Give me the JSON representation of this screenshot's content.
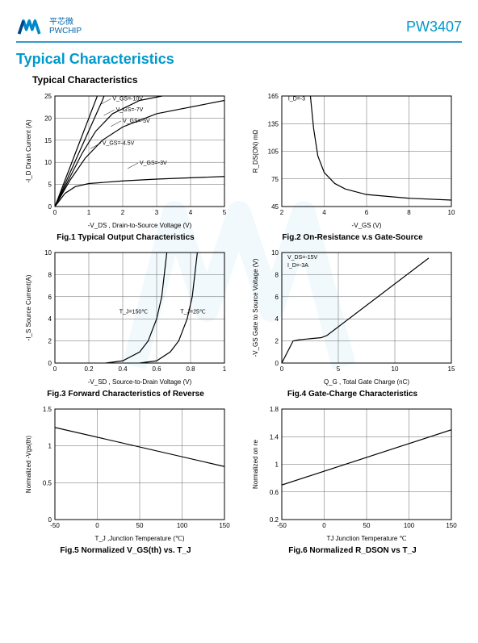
{
  "header": {
    "brand_cn": "平芯微",
    "brand_en": "PWCHIP",
    "part_number": "PW3407"
  },
  "section_title": "Typical Characteristics",
  "subsection_title": "Typical Characteristics",
  "charts": {
    "fig1": {
      "caption": "Fig.1 Typical Output Characteristics",
      "xlabel": "-V_DS , Drain-to-Source Voltage (V)",
      "ylabel": "-I_D Drain Current (A)",
      "xlim": [
        0,
        5
      ],
      "ylim": [
        0,
        25
      ],
      "xticks": [
        0,
        1,
        2,
        3,
        4,
        5
      ],
      "yticks": [
        0,
        5,
        10,
        15,
        20,
        25
      ],
      "annotations": [
        "V_GS=-10V",
        "V_GS=-7V",
        "V_GS=-5V",
        "V_GS=-4.5V",
        "V_GS=-3V"
      ],
      "series": [
        {
          "points": [
            [
              0,
              0
            ],
            [
              0.3,
              6
            ],
            [
              0.6,
              12
            ],
            [
              0.9,
              18
            ],
            [
              1.2,
              24
            ],
            [
              1.3,
              26
            ]
          ]
        },
        {
          "points": [
            [
              0,
              0
            ],
            [
              0.35,
              6
            ],
            [
              0.7,
              12
            ],
            [
              1.05,
              18
            ],
            [
              1.4,
              24
            ],
            [
              1.5,
              26
            ]
          ]
        },
        {
          "points": [
            [
              0,
              0
            ],
            [
              0.4,
              6
            ],
            [
              0.8,
              12
            ],
            [
              1.2,
              17
            ],
            [
              1.7,
              21
            ],
            [
              2.5,
              24
            ],
            [
              3.5,
              25.5
            ]
          ]
        },
        {
          "points": [
            [
              0,
              0
            ],
            [
              0.45,
              6
            ],
            [
              0.9,
              11
            ],
            [
              1.4,
              15
            ],
            [
              2.0,
              18
            ],
            [
              3.0,
              21
            ],
            [
              5.0,
              24
            ]
          ]
        },
        {
          "points": [
            [
              0,
              0
            ],
            [
              0.3,
              3
            ],
            [
              0.6,
              4.5
            ],
            [
              1.0,
              5.2
            ],
            [
              2.0,
              5.8
            ],
            [
              3.0,
              6.2
            ],
            [
              5.0,
              6.8
            ]
          ]
        }
      ]
    },
    "fig2": {
      "caption": "Fig.2 On-Resistance v.s Gate-Source",
      "xlabel": "-V_GS (V)",
      "ylabel": "R_DS(ON) mΩ",
      "xlim": [
        2,
        10
      ],
      "ylim": [
        45,
        165
      ],
      "xticks": [
        2,
        4,
        6,
        8,
        10
      ],
      "yticks": [
        45,
        75,
        105,
        135,
        165
      ],
      "annotation": "I_D=-3",
      "series": [
        {
          "points": [
            [
              3.35,
              165
            ],
            [
              3.5,
              130
            ],
            [
              3.7,
              100
            ],
            [
              4.0,
              82
            ],
            [
              4.5,
              70
            ],
            [
              5.0,
              64
            ],
            [
              6.0,
              58
            ],
            [
              8.0,
              54
            ],
            [
              10.0,
              52
            ]
          ]
        }
      ]
    },
    "fig3": {
      "caption": "Fig.3 Forward Characteristics of Reverse",
      "xlabel": "-V_SD , Source-to-Drain Voltage (V)",
      "ylabel": "-I_S Source Current(A)",
      "xlim": [
        0,
        1
      ],
      "ylim": [
        0,
        10
      ],
      "xticks": [
        0,
        0.2,
        0.4,
        0.6,
        0.8,
        1
      ],
      "yticks": [
        0,
        2,
        4,
        6,
        8,
        10
      ],
      "annotations": [
        "T_J=150℃",
        "T_J=25℃"
      ],
      "series": [
        {
          "points": [
            [
              0.3,
              0
            ],
            [
              0.4,
              0.2
            ],
            [
              0.5,
              1
            ],
            [
              0.55,
              2
            ],
            [
              0.6,
              4
            ],
            [
              0.63,
              6
            ],
            [
              0.66,
              10
            ]
          ]
        },
        {
          "points": [
            [
              0.5,
              0
            ],
            [
              0.6,
              0.2
            ],
            [
              0.68,
              1
            ],
            [
              0.73,
              2
            ],
            [
              0.78,
              4
            ],
            [
              0.81,
              6
            ],
            [
              0.84,
              10
            ]
          ]
        }
      ]
    },
    "fig4": {
      "caption": "Fig.4 Gate-Charge Characteristics",
      "xlabel": "Q_G , Total Gate Charge (nC)",
      "ylabel": "-V_GS Gate to Source Voltage (V)",
      "xlim": [
        0,
        15
      ],
      "ylim": [
        0,
        10
      ],
      "xticks": [
        0,
        5,
        10,
        15
      ],
      "yticks": [
        0,
        2,
        4,
        6,
        8,
        10
      ],
      "annotations": [
        "V_DS=-15V",
        "I_D=-3A"
      ],
      "series": [
        {
          "points": [
            [
              0,
              0
            ],
            [
              1,
              2
            ],
            [
              1.5,
              2.1
            ],
            [
              3.5,
              2.3
            ],
            [
              4,
              2.5
            ],
            [
              13,
              9.5
            ]
          ]
        }
      ]
    },
    "fig5": {
      "caption": "Fig.5 Normalized V_GS(th) vs. T_J",
      "xlabel": "T_J ,Junction Temperature (℃)",
      "ylabel": "Normalized -Vgs(th)",
      "xlim": [
        -50,
        150
      ],
      "ylim": [
        0,
        1.5
      ],
      "xticks": [
        -50,
        0,
        50,
        100,
        150
      ],
      "yticks": [
        0,
        0.5,
        1,
        1.5
      ],
      "series": [
        {
          "points": [
            [
              -50,
              1.25
            ],
            [
              150,
              0.72
            ]
          ]
        }
      ]
    },
    "fig6": {
      "caption": "Fig.6 Normalized R_DSON vs T_J",
      "xlabel": "TJ  Junction Temperature ℃",
      "ylabel": "Normalized on re",
      "xlim": [
        -50,
        150
      ],
      "ylim": [
        0.2,
        1.8
      ],
      "xticks": [
        -50,
        0,
        50,
        100,
        150
      ],
      "yticks": [
        0.2,
        0.6,
        1.0,
        1.4,
        1.8
      ],
      "series": [
        {
          "points": [
            [
              -50,
              0.7
            ],
            [
              150,
              1.5
            ]
          ]
        }
      ]
    }
  },
  "colors": {
    "brand_blue": "#0099cc",
    "line": "#000000",
    "grid": "#666666",
    "bg": "#ffffff"
  }
}
